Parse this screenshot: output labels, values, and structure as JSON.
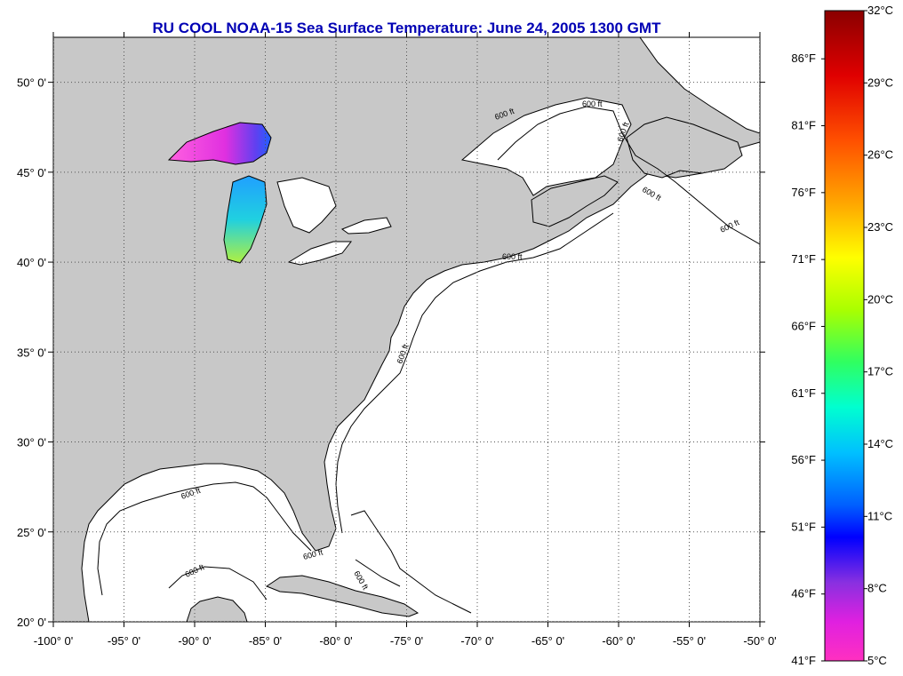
{
  "title": "RU COOL  NOAA-15  Sea Surface Temperature:  June 24, 2005 1300 GMT",
  "map": {
    "lon_range": [
      -100,
      -50
    ],
    "lat_range": [
      20,
      52.5
    ],
    "lon_ticks": [
      {
        "value": -100,
        "label": "-100° 0'"
      },
      {
        "value": -95,
        "label": "-95° 0'"
      },
      {
        "value": -90,
        "label": "-90° 0'"
      },
      {
        "value": -85,
        "label": "-85° 0'"
      },
      {
        "value": -80,
        "label": "-80° 0'"
      },
      {
        "value": -75,
        "label": "-75° 0'"
      },
      {
        "value": -70,
        "label": "-70° 0'"
      },
      {
        "value": -65,
        "label": "-65° 0'"
      },
      {
        "value": -60,
        "label": "-60° 0'"
      },
      {
        "value": -55,
        "label": "-55° 0'"
      },
      {
        "value": -50,
        "label": "-50° 0'"
      }
    ],
    "lat_ticks": [
      {
        "value": 20,
        "label": "20° 0'"
      },
      {
        "value": 25,
        "label": "25° 0'"
      },
      {
        "value": 30,
        "label": "30° 0'"
      },
      {
        "value": 35,
        "label": "35° 0'"
      },
      {
        "value": 40,
        "label": "40° 0'"
      },
      {
        "value": 45,
        "label": "45° 0'"
      },
      {
        "value": 50,
        "label": "50° 0'"
      }
    ],
    "contour_label": "600 ft",
    "colors": {
      "land": "#c8c8c8",
      "water": "#ffffff",
      "grid": "#555555",
      "title": "#0000b4"
    }
  },
  "colorbar": {
    "range_c": [
      5,
      32
    ],
    "celsius_ticks": [
      {
        "value": 32,
        "label": "32°C"
      },
      {
        "value": 29,
        "label": "29°C"
      },
      {
        "value": 26,
        "label": "26°C"
      },
      {
        "value": 23,
        "label": "23°C"
      },
      {
        "value": 20,
        "label": "20°C"
      },
      {
        "value": 17,
        "label": "17°C"
      },
      {
        "value": 14,
        "label": "14°C"
      },
      {
        "value": 11,
        "label": "11°C"
      },
      {
        "value": 8,
        "label": "8°C"
      },
      {
        "value": 5,
        "label": "5°C"
      }
    ],
    "fahrenheit_ticks": [
      {
        "value": 86,
        "label": "86°F"
      },
      {
        "value": 81,
        "label": "81°F"
      },
      {
        "value": 76,
        "label": "76°F"
      },
      {
        "value": 71,
        "label": "71°F"
      },
      {
        "value": 66,
        "label": "66°F"
      },
      {
        "value": 61,
        "label": "61°F"
      },
      {
        "value": 56,
        "label": "56°F"
      },
      {
        "value": 51,
        "label": "51°F"
      },
      {
        "value": 46,
        "label": "46°F"
      },
      {
        "value": 41,
        "label": "41°F"
      }
    ]
  }
}
